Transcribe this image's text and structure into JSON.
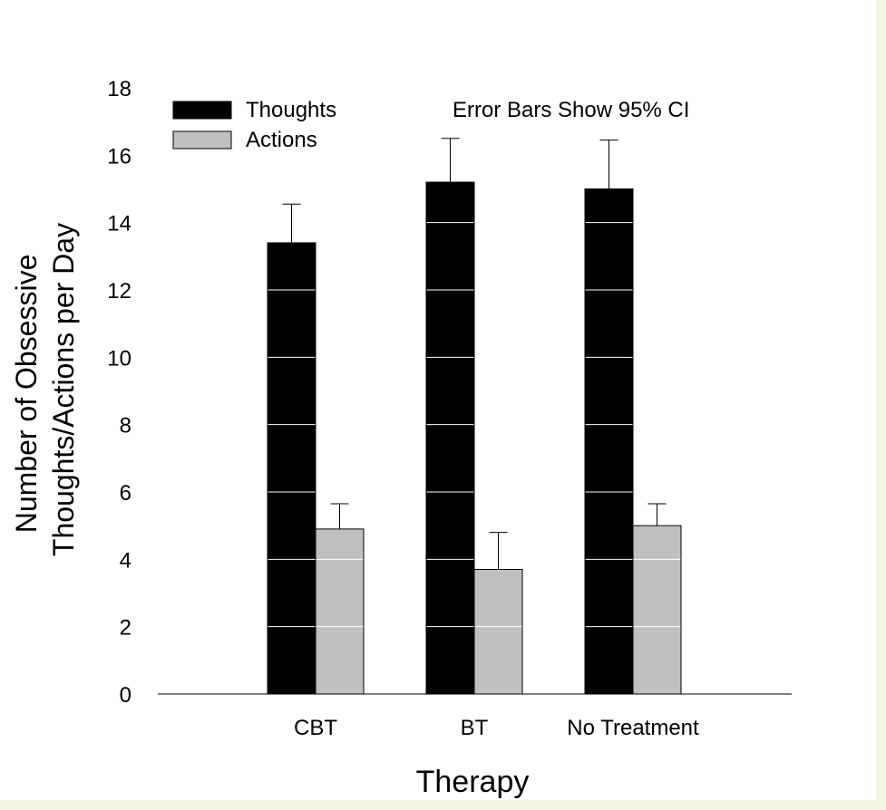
{
  "chart_data": {
    "type": "bar",
    "title": "",
    "annotation": "Error Bars Show 95% CI",
    "xlabel": "Therapy",
    "ylabel_lines": [
      "Number of Obsessive",
      "Thoughts/Actions per Day"
    ],
    "categories": [
      "CBT",
      "BT",
      "No Treatment"
    ],
    "ylim": [
      0,
      18
    ],
    "yticks": [
      0,
      2,
      4,
      6,
      8,
      10,
      12,
      14,
      16,
      18
    ],
    "grid": "horizontal lines inside bars only",
    "legend_position": "top-left",
    "series": [
      {
        "name": "Thoughts",
        "color": "#000000",
        "values": [
          13.4,
          15.2,
          15.0
        ],
        "ci_upper": [
          14.55,
          16.5,
          16.45
        ]
      },
      {
        "name": "Actions",
        "color": "#c0c0c0",
        "values": [
          4.9,
          3.7,
          5.0
        ],
        "ci_upper": [
          5.65,
          4.8,
          5.65
        ]
      }
    ]
  },
  "colors": {
    "background": "#ffffff",
    "frame": "#f1f3e3",
    "axis": "#000000"
  }
}
